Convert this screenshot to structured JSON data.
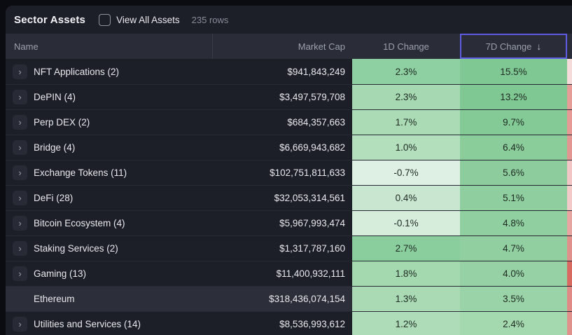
{
  "header": {
    "title": "Sector Assets",
    "view_all_label": "View All Assets",
    "rows_count": "235 rows"
  },
  "columns": {
    "name": "Name",
    "market_cap": "Market Cap",
    "d1": "1D Change",
    "d7": "7D Change"
  },
  "icons": {
    "expand_chevron": "›",
    "sort_desc": "↓",
    "checkbox_state": "unchecked"
  },
  "colors": {
    "sorted_column_border": "#5d5ce2",
    "positive_heat_base": "#7fc893",
    "negative_heat_base": "#d96a62",
    "card_background": "#1d1f28",
    "header_background": "#2a2c37"
  },
  "sort": {
    "column": "7D Change",
    "direction": "desc"
  },
  "rows": [
    {
      "name": "NFT Applications (2)",
      "market_cap": "$941,843,249",
      "d1": "2.3%",
      "d7": "15.5%",
      "d1_bg": "#8ed0a2",
      "d7_bg": "#7fc893",
      "next_bg": "#f6dbdb",
      "expandable": true,
      "highlighted": false
    },
    {
      "name": "DePIN (4)",
      "market_cap": "$3,497,579,708",
      "d1": "2.3%",
      "d7": "13.2%",
      "d1_bg": "#a6d9b1",
      "d7_bg": "#80c893",
      "next_bg": "#e69d98",
      "expandable": true,
      "highlighted": false
    },
    {
      "name": "Perp DEX (2)",
      "market_cap": "$684,357,663",
      "d1": "1.7%",
      "d7": "9.7%",
      "d1_bg": "#abdbb5",
      "d7_bg": "#84ca96",
      "next_bg": "#e59a95",
      "expandable": true,
      "highlighted": false
    },
    {
      "name": "Bridge (4)",
      "market_cap": "$6,669,943,682",
      "d1": "1.0%",
      "d7": "6.4%",
      "d1_bg": "#b4dfbd",
      "d7_bg": "#8bcc9b",
      "next_bg": "#e39792",
      "expandable": true,
      "highlighted": false
    },
    {
      "name": "Exchange Tokens (11)",
      "market_cap": "$102,751,811,633",
      "d1": "-0.7%",
      "d7": "5.6%",
      "d1_bg": "#ddf0e3",
      "d7_bg": "#8dcd9d",
      "next_bg": "#f1c6c4",
      "expandable": true,
      "highlighted": false
    },
    {
      "name": "DeFi (28)",
      "market_cap": "$32,053,314,561",
      "d1": "0.4%",
      "d7": "5.1%",
      "d1_bg": "#c9e7d0",
      "d7_bg": "#8fce9f",
      "next_bg": "#f2cbc9",
      "expandable": true,
      "highlighted": false
    },
    {
      "name": "Bitcoin Ecosystem (4)",
      "market_cap": "$5,967,993,474",
      "d1": "-0.1%",
      "d7": "4.8%",
      "d1_bg": "#d7eddc",
      "d7_bg": "#90cfa0",
      "next_bg": "#e8a6a1",
      "expandable": true,
      "highlighted": false
    },
    {
      "name": "Staking Services (2)",
      "market_cap": "$1,317,787,160",
      "d1": "2.7%",
      "d7": "4.7%",
      "d1_bg": "#8bce9e",
      "d7_bg": "#91cfa1",
      "next_bg": "#e1918b",
      "expandable": true,
      "highlighted": false
    },
    {
      "name": "Gaming (13)",
      "market_cap": "$11,400,932,111",
      "d1": "1.8%",
      "d7": "4.0%",
      "d1_bg": "#a4d8af",
      "d7_bg": "#95d1a4",
      "next_bg": "#d96a62",
      "expandable": true,
      "highlighted": false
    },
    {
      "name": "Ethereum",
      "market_cap": "$318,436,074,154",
      "d1": "1.3%",
      "d7": "3.5%",
      "d1_bg": "#a9dab3",
      "d7_bg": "#99d3a7",
      "next_bg": "#e08b85",
      "expandable": false,
      "highlighted": true
    },
    {
      "name": "Utilities and Services (14)",
      "market_cap": "$8,536,993,612",
      "d1": "1.2%",
      "d7": "2.4%",
      "d1_bg": "#aedcb8",
      "d7_bg": "#a4d8ae",
      "next_bg": "#e1918b",
      "expandable": true,
      "highlighted": false
    }
  ]
}
